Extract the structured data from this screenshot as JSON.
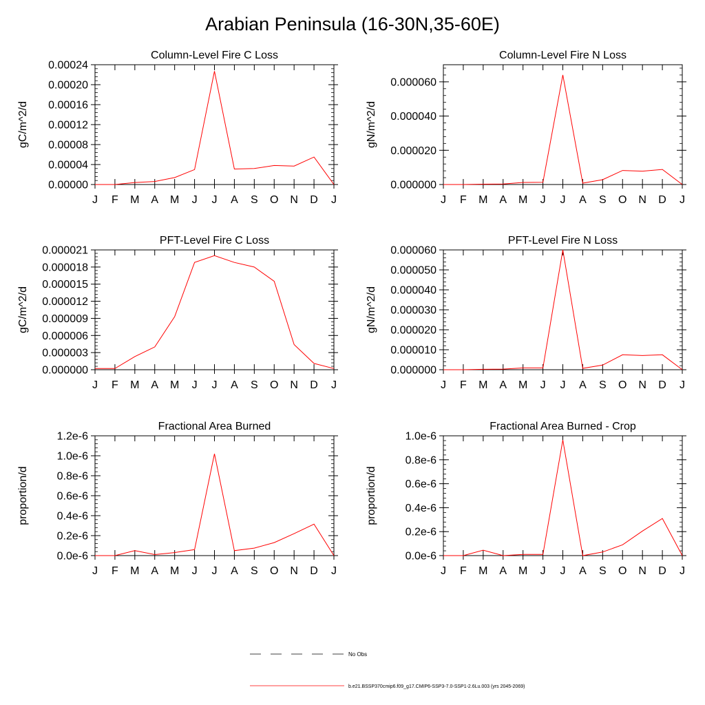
{
  "title": "Arabian Peninsula (16-30N,35-60E)",
  "colors": {
    "model_line": "#ff0000",
    "axis": "#000000"
  },
  "legend": {
    "obs_label": "No Obs",
    "model_label": "b.e21.BSSP370cmip6.f09_g17.CMIP6-SSP3-7.0-SSP1-2.6Lu.003 (yrs 2045-2069)"
  },
  "chart_data": [
    {
      "type": "line",
      "title": "Column-Level Fire C Loss",
      "ylabel": "gC/m^2/d",
      "categories": [
        "J",
        "F",
        "M",
        "A",
        "M",
        "J",
        "J",
        "A",
        "S",
        "O",
        "N",
        "D",
        "J"
      ],
      "ylim": [
        0,
        0.00024
      ],
      "yticks": [
        "0.00000",
        "0.00004",
        "0.00008",
        "0.00012",
        "0.00016",
        "0.00020",
        "0.00024"
      ],
      "ytick_values": [
        0,
        4e-05,
        8e-05,
        0.00012,
        0.00016,
        0.0002,
        0.00024
      ],
      "series": [
        {
          "values": [
            0.0,
            0.0,
            4e-06,
            6e-06,
            1.4e-05,
            3e-05,
            0.000227,
            3.1e-05,
            3.2e-05,
            3.8e-05,
            3.7e-05,
            5.5e-05,
            0.0
          ]
        }
      ]
    },
    {
      "type": "line",
      "title": "Column-Level Fire N Loss",
      "ylabel": "gN/m^2/d",
      "categories": [
        "J",
        "F",
        "M",
        "A",
        "M",
        "J",
        "J",
        "A",
        "S",
        "O",
        "N",
        "D",
        "J"
      ],
      "ylim": [
        0,
        7e-05
      ],
      "yticks": [
        "0.000000",
        "0.000020",
        "0.000040",
        "0.000060"
      ],
      "ytick_values": [
        0,
        2e-05,
        4e-05,
        6e-05
      ],
      "series": [
        {
          "values": [
            0.0,
            0.0,
            2e-07,
            3e-07,
            1.2e-06,
            1.3e-06,
            6.4e-05,
            8e-07,
            2.8e-06,
            8.2e-06,
            7.8e-06,
            8.8e-06,
            0.0
          ]
        }
      ]
    },
    {
      "type": "line",
      "title": "PFT-Level Fire C Loss",
      "ylabel": "gC/m^2/d",
      "categories": [
        "J",
        "F",
        "M",
        "A",
        "M",
        "J",
        "J",
        "A",
        "S",
        "O",
        "N",
        "D",
        "J"
      ],
      "ylim": [
        0,
        2.1e-05
      ],
      "yticks": [
        "0.000000",
        "0.000003",
        "0.000006",
        "0.000009",
        "0.000012",
        "0.000015",
        "0.000018",
        "0.000021"
      ],
      "ytick_values": [
        0,
        3e-06,
        6e-06,
        9e-06,
        1.2e-05,
        1.5e-05,
        1.8e-05,
        2.1e-05
      ],
      "series": [
        {
          "values": [
            2e-07,
            2e-07,
            2.3e-06,
            4e-06,
            9.3e-06,
            1.88e-05,
            2e-05,
            1.88e-05,
            1.8e-05,
            1.55e-05,
            4.4e-06,
            1.1e-06,
            2e-07
          ]
        }
      ]
    },
    {
      "type": "line",
      "title": "PFT-Level Fire N Loss",
      "ylabel": "gN/m^2/d",
      "categories": [
        "J",
        "F",
        "M",
        "A",
        "M",
        "J",
        "J",
        "A",
        "S",
        "O",
        "N",
        "D",
        "J"
      ],
      "ylim": [
        0,
        6e-05
      ],
      "yticks": [
        "0.000000",
        "0.000010",
        "0.000020",
        "0.000030",
        "0.000040",
        "0.000050",
        "0.000060"
      ],
      "ytick_values": [
        0,
        1e-05,
        2e-05,
        3e-05,
        4e-05,
        5e-05,
        6e-05
      ],
      "series": [
        {
          "values": [
            0.0,
            0.0,
            2e-07,
            3e-07,
            9e-07,
            9e-07,
            6e-05,
            7e-07,
            2.3e-06,
            7.5e-06,
            7.1e-06,
            7.5e-06,
            0.0
          ]
        }
      ]
    },
    {
      "type": "line",
      "title": "Fractional Area Burned",
      "ylabel": "proportion/d",
      "categories": [
        "J",
        "F",
        "M",
        "A",
        "M",
        "J",
        "J",
        "A",
        "S",
        "O",
        "N",
        "D",
        "J"
      ],
      "ylim": [
        0,
        1.2e-06
      ],
      "yticks": [
        "0.0e-6",
        "0.2e-6",
        "0.4e-6",
        "0.6e-6",
        "0.8e-6",
        "1.0e-6",
        "1.2e-6"
      ],
      "ytick_values": [
        0,
        2e-07,
        4e-07,
        6e-07,
        8e-07,
        1e-06,
        1.2e-06
      ],
      "series": [
        {
          "values": [
            0.0,
            0.0,
            5e-08,
            1e-08,
            3e-08,
            6e-08,
            1.02e-06,
            5e-08,
            7.5e-08,
            1.3e-07,
            2.2e-07,
            3.15e-07,
            0.0
          ]
        }
      ]
    },
    {
      "type": "line",
      "title": "Fractional Area Burned - Crop",
      "ylabel": "proportion/d",
      "categories": [
        "J",
        "F",
        "M",
        "A",
        "M",
        "J",
        "J",
        "A",
        "S",
        "O",
        "N",
        "D",
        "J"
      ],
      "ylim": [
        0,
        1e-06
      ],
      "yticks": [
        "0.0e-6",
        "0.2e-6",
        "0.4e-6",
        "0.6e-6",
        "0.8e-6",
        "1.0e-6"
      ],
      "ytick_values": [
        0,
        2e-07,
        4e-07,
        6e-07,
        8e-07,
        1e-06
      ],
      "series": [
        {
          "values": [
            0.0,
            0.0,
            4.5e-08,
            0.0,
            1e-08,
            1e-08,
            9.65e-07,
            0.0,
            3e-08,
            9e-08,
            2.05e-07,
            3.1e-07,
            0.0
          ]
        }
      ]
    }
  ]
}
